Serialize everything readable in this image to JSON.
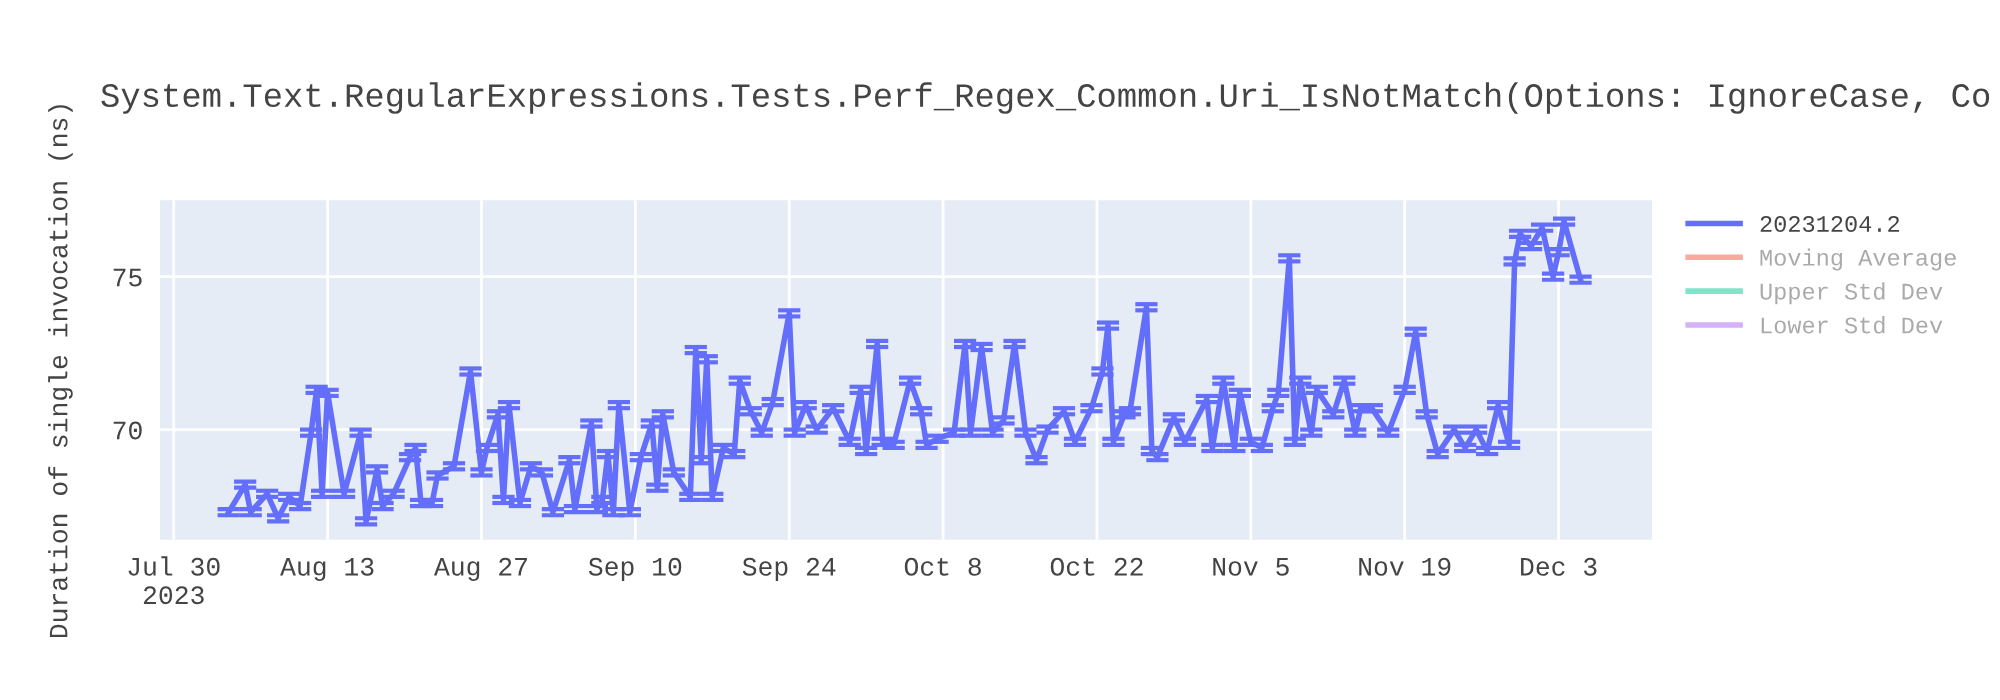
{
  "chart_data": {
    "type": "line",
    "title": "System.Text.RegularExpressions.Tests.Perf_Regex_Common.Uri_IsNotMatch(Options: IgnoreCase, Co",
    "ylabel": "Duration of single invocation (ns)",
    "x": [
      "2023-08-04",
      "2023-08-05T12:00",
      "2023-08-06",
      "2023-08-07T12:00",
      "2023-08-08T12:00",
      "2023-08-09T12:00",
      "2023-08-10T12:00",
      "2023-08-11T12:00",
      "2023-08-12",
      "2023-08-12T12:00",
      "2023-08-13",
      "2023-08-14T12:00",
      "2023-08-16",
      "2023-08-16T12:00",
      "2023-08-17T12:00",
      "2023-08-18",
      "2023-08-19",
      "2023-08-20T12:00",
      "2023-08-21",
      "2023-08-21T12:00",
      "2023-08-22T12:00",
      "2023-08-23",
      "2023-08-24T12:00",
      "2023-08-26",
      "2023-08-27",
      "2023-08-27T12:00",
      "2023-08-28T12:00",
      "2023-08-29",
      "2023-08-29T12:00",
      "2023-08-30T12:00",
      "2023-08-31T12:00",
      "2023-09-01T12:00",
      "2023-09-02T12:00",
      "2023-09-04",
      "2023-09-04T12:00",
      "2023-09-06",
      "2023-09-06T12:00",
      "2023-09-07",
      "2023-09-07T12:00",
      "2023-09-08",
      "2023-09-08T12:00",
      "2023-09-09T12:00",
      "2023-09-10T12:00",
      "2023-09-11T12:00",
      "2023-09-12",
      "2023-09-12T12:00",
      "2023-09-13T12:00",
      "2023-09-15",
      "2023-09-15T12:00",
      "2023-09-16",
      "2023-09-16T12:00",
      "2023-09-17",
      "2023-09-18",
      "2023-09-19",
      "2023-09-19T12:00",
      "2023-09-20T12:00",
      "2023-09-21T12:00",
      "2023-09-22T12:00",
      "2023-09-24",
      "2023-09-24T12:00",
      "2023-09-25T12:00",
      "2023-09-26T12:00",
      "2023-09-28",
      "2023-09-29T12:00",
      "2023-09-30T12:00",
      "2023-10-01",
      "2023-10-02",
      "2023-10-02T12:00",
      "2023-10-03T12:00",
      "2023-10-05",
      "2023-10-06",
      "2023-10-06T12:00",
      "2023-10-07T12:00",
      "2023-10-09",
      "2023-10-10",
      "2023-10-10T12:00",
      "2023-10-11T12:00",
      "2023-10-12T12:00",
      "2023-10-13T12:00",
      "2023-10-14T12:00",
      "2023-10-15T12:00",
      "2023-10-16T12:00",
      "2023-10-17T12:00",
      "2023-10-19",
      "2023-10-20",
      "2023-10-21T12:00",
      "2023-10-22T12:00",
      "2023-10-23",
      "2023-10-23T12:00",
      "2023-10-24T12:00",
      "2023-10-25",
      "2023-10-26T12:00",
      "2023-10-27",
      "2023-10-27T12:00",
      "2023-10-29",
      "2023-10-30",
      "2023-11-01",
      "2023-11-01T12:00",
      "2023-11-02T12:00",
      "2023-11-03T12:00",
      "2023-11-04",
      "2023-11-05",
      "2023-11-06",
      "2023-11-07",
      "2023-11-07T12:00",
      "2023-11-08T12:00",
      "2023-11-09",
      "2023-11-09T12:00",
      "2023-11-10T12:00",
      "2023-11-11",
      "2023-11-12T12:00",
      "2023-11-13T12:00",
      "2023-11-14T12:00",
      "2023-11-15",
      "2023-11-16",
      "2023-11-17T12:00",
      "2023-11-19",
      "2023-11-20",
      "2023-11-21",
      "2023-11-22",
      "2023-11-23T12:00",
      "2023-11-24T12:00",
      "2023-11-25T12:00",
      "2023-11-26T12:00",
      "2023-11-27T12:00",
      "2023-11-28T12:00",
      "2023-11-29",
      "2023-11-29T12:00",
      "2023-11-30T12:00",
      "2023-12-01T12:00",
      "2023-12-02T12:00",
      "2023-12-03",
      "2023-12-03T12:00",
      "2023-12-05"
    ],
    "series": [
      {
        "name": "20231204.2",
        "color": "#636efa",
        "values": [
          67.3,
          68.2,
          67.3,
          67.9,
          67.1,
          67.8,
          67.5,
          69.9,
          71.3,
          67.9,
          71.2,
          67.9,
          69.9,
          67.0,
          68.7,
          67.5,
          67.9,
          69.1,
          69.4,
          67.6,
          67.6,
          68.5,
          68.8,
          71.9,
          68.6,
          69.4,
          70.5,
          67.7,
          70.8,
          67.6,
          68.8,
          68.6,
          67.3,
          69.0,
          67.4,
          70.2,
          67.4,
          67.7,
          69.2,
          67.3,
          70.8,
          67.3,
          69.1,
          70.2,
          68.1,
          70.5,
          68.6,
          67.8,
          72.6,
          69.0,
          72.3,
          67.8,
          69.4,
          69.2,
          71.6,
          70.6,
          69.9,
          70.9,
          73.8,
          69.9,
          70.8,
          70.0,
          70.7,
          69.6,
          71.3,
          69.3,
          72.8,
          69.6,
          69.5,
          71.6,
          70.6,
          69.5,
          69.7,
          69.9,
          72.8,
          69.9,
          72.7,
          69.9,
          70.3,
          72.8,
          69.9,
          69.0,
          70.0,
          70.6,
          69.6,
          70.7,
          71.9,
          73.4,
          69.6,
          70.5,
          70.6,
          74.0,
          69.3,
          69.1,
          70.4,
          69.6,
          71.0,
          69.4,
          71.6,
          69.4,
          71.2,
          69.6,
          69.4,
          70.7,
          71.2,
          75.6,
          69.6,
          71.6,
          69.9,
          71.3,
          70.5,
          71.6,
          69.9,
          70.7,
          70.7,
          69.9,
          71.3,
          73.2,
          70.5,
          69.2,
          70.0,
          69.4,
          70.0,
          69.3,
          70.8,
          69.5,
          75.5,
          76.4,
          76.0,
          76.6,
          75.0,
          75.8,
          76.8,
          74.9
        ],
        "errors": [
          0.1,
          0.1,
          0.1,
          0.1,
          0.1,
          0.1,
          0.1,
          0.1,
          0.1,
          0.1,
          0.1,
          0.1,
          0.1,
          0.1,
          0.1,
          0.1,
          0.1,
          0.1,
          0.1,
          0.1,
          0.1,
          0.1,
          0.1,
          0.1,
          0.1,
          0.1,
          0.1,
          0.1,
          0.1,
          0.1,
          0.1,
          0.1,
          0.1,
          0.1,
          0.1,
          0.1,
          0.1,
          0.1,
          0.1,
          0.1,
          0.1,
          0.1,
          0.1,
          0.1,
          0.1,
          0.1,
          0.1,
          0.1,
          0.1,
          0.1,
          0.1,
          0.1,
          0.1,
          0.1,
          0.1,
          0.1,
          0.1,
          0.1,
          0.1,
          0.1,
          0.1,
          0.1,
          0.1,
          0.1,
          0.1,
          0.1,
          0.1,
          0.1,
          0.1,
          0.1,
          0.1,
          0.1,
          0.1,
          0.1,
          0.1,
          0.1,
          0.1,
          0.1,
          0.1,
          0.1,
          0.1,
          0.1,
          0.1,
          0.1,
          0.1,
          0.1,
          0.1,
          0.1,
          0.1,
          0.1,
          0.1,
          0.1,
          0.1,
          0.1,
          0.1,
          0.1,
          0.1,
          0.1,
          0.1,
          0.1,
          0.1,
          0.1,
          0.1,
          0.1,
          0.1,
          0.1,
          0.1,
          0.1,
          0.1,
          0.1,
          0.1,
          0.1,
          0.1,
          0.1,
          0.1,
          0.1,
          0.1,
          0.1,
          0.1,
          0.1,
          0.1,
          0.1,
          0.1,
          0.1,
          0.1,
          0.1,
          0.1,
          0.1,
          0.1,
          0.1,
          0.1,
          0.1,
          0.1,
          0.1
        ]
      },
      {
        "name": "Moving Average",
        "color": "#ef553b",
        "values": [
          null,
          null,
          null,
          null,
          null,
          null,
          null,
          null,
          null,
          null,
          null,
          null,
          null,
          null,
          null,
          null,
          null,
          null,
          null,
          null,
          null,
          null,
          null,
          null,
          null,
          null,
          null,
          null,
          null,
          null,
          null,
          null,
          null,
          null,
          null,
          null,
          null,
          null,
          null,
          null,
          null,
          null,
          null,
          null,
          null,
          null,
          null,
          null,
          null,
          null,
          null,
          null,
          null,
          null,
          null,
          null,
          null,
          null,
          null,
          null,
          null,
          null,
          null,
          null,
          null,
          null,
          null,
          null,
          null,
          null,
          null,
          null,
          null,
          null,
          null,
          null,
          null,
          null,
          null,
          null,
          null,
          null,
          null,
          null,
          null,
          null,
          null,
          null,
          null,
          null,
          null,
          null,
          null,
          null,
          null,
          null,
          null,
          null,
          null,
          null,
          null,
          null,
          null,
          null,
          null,
          null,
          null,
          null,
          null,
          null,
          null,
          null,
          null,
          null,
          null,
          null,
          null,
          null,
          null,
          null,
          null,
          null,
          null,
          null,
          null,
          null,
          null,
          null,
          null,
          null,
          null,
          null,
          null,
          null
        ]
      },
      {
        "name": "Upper Std Dev",
        "color": "#00cc96",
        "values": [
          null,
          null,
          null,
          null,
          null,
          null,
          null,
          null,
          null,
          null,
          null,
          null,
          null,
          null,
          null,
          null,
          null,
          null,
          null,
          null,
          null,
          null,
          null,
          null,
          null,
          null,
          null,
          null,
          null,
          null,
          null,
          null,
          null,
          null,
          null,
          null,
          null,
          null,
          null,
          null,
          null,
          null,
          null,
          null,
          null,
          null,
          null,
          null,
          null,
          null,
          null,
          null,
          null,
          null,
          null,
          null,
          null,
          null,
          null,
          null,
          null,
          null,
          null,
          null,
          null,
          null,
          null,
          null,
          null,
          null,
          null,
          null,
          null,
          null,
          null,
          null,
          null,
          null,
          null,
          null,
          null,
          null,
          null,
          null,
          null,
          null,
          null,
          null,
          null,
          null,
          null,
          null,
          null,
          null,
          null,
          null,
          null,
          null,
          null,
          null,
          null,
          null,
          null,
          null,
          null,
          null,
          null,
          null,
          null,
          null,
          null,
          null,
          null,
          null,
          null,
          null,
          null,
          null,
          null,
          null,
          null,
          null,
          null,
          null,
          null,
          null,
          null,
          null,
          null,
          null,
          null,
          null,
          null,
          null
        ]
      },
      {
        "name": "Lower Std Dev",
        "color": "#ab63fa",
        "values": [
          null,
          null,
          null,
          null,
          null,
          null,
          null,
          null,
          null,
          null,
          null,
          null,
          null,
          null,
          null,
          null,
          null,
          null,
          null,
          null,
          null,
          null,
          null,
          null,
          null,
          null,
          null,
          null,
          null,
          null,
          null,
          null,
          null,
          null,
          null,
          null,
          null,
          null,
          null,
          null,
          null,
          null,
          null,
          null,
          null,
          null,
          null,
          null,
          null,
          null,
          null,
          null,
          null,
          null,
          null,
          null,
          null,
          null,
          null,
          null,
          null,
          null,
          null,
          null,
          null,
          null,
          null,
          null,
          null,
          null,
          null,
          null,
          null,
          null,
          null,
          null,
          null,
          null,
          null,
          null,
          null,
          null,
          null,
          null,
          null,
          null,
          null,
          null,
          null,
          null,
          null,
          null,
          null,
          null,
          null,
          null,
          null,
          null,
          null,
          null,
          null,
          null,
          null,
          null,
          null,
          null,
          null,
          null,
          null,
          null,
          null,
          null,
          null,
          null,
          null,
          null,
          null,
          null,
          null,
          null,
          null,
          null,
          null,
          null,
          null,
          null,
          null,
          null,
          null,
          null,
          null,
          null,
          null,
          null
        ]
      }
    ],
    "xlim": [
      "2023-07-28T18:00",
      "2023-12-11T12:00"
    ],
    "xticks": [
      {
        "value": "2023-07-30",
        "label": "Jul 30\n2023"
      },
      {
        "value": "2023-08-13",
        "label": "Aug 13"
      },
      {
        "value": "2023-08-27",
        "label": "Aug 27"
      },
      {
        "value": "2023-09-10",
        "label": "Sep 10"
      },
      {
        "value": "2023-09-24",
        "label": "Sep 24"
      },
      {
        "value": "2023-10-08",
        "label": "Oct 8"
      },
      {
        "value": "2023-10-22",
        "label": "Oct 22"
      },
      {
        "value": "2023-11-05",
        "label": "Nov 5"
      },
      {
        "value": "2023-11-19",
        "label": "Nov 19"
      },
      {
        "value": "2023-12-03",
        "label": "Dec 3"
      }
    ],
    "ylim": [
      66.4,
      77.5
    ],
    "yticks": [
      70,
      75
    ],
    "grid": true,
    "legend": "right",
    "marker": "none",
    "line_style": "solid"
  }
}
